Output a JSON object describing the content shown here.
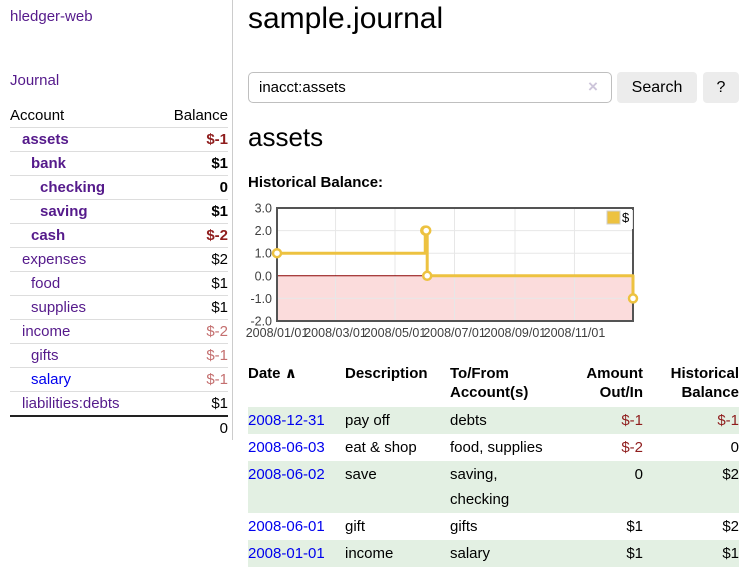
{
  "sidebar": {
    "brand": "hledger-web",
    "nav": {
      "journal": "Journal"
    },
    "table": {
      "account_header": "Account",
      "balance_header": "Balance",
      "accounts": [
        {
          "name": "assets",
          "balance": "$-1",
          "indent": 1,
          "bold": true,
          "balance_tone": "neg"
        },
        {
          "name": "bank",
          "balance": "$1",
          "indent": 2,
          "bold": true,
          "balance_tone": ""
        },
        {
          "name": "checking",
          "balance": "0",
          "indent": 3,
          "bold": true,
          "balance_tone": ""
        },
        {
          "name": "saving",
          "balance": "$1",
          "indent": 3,
          "bold": true,
          "balance_tone": ""
        },
        {
          "name": "cash",
          "balance": "$-2",
          "indent": 2,
          "bold": true,
          "balance_tone": "neg"
        },
        {
          "name": "expenses",
          "balance": "$2",
          "indent": 1,
          "bold": false,
          "balance_tone": ""
        },
        {
          "name": "food",
          "balance": "$1",
          "indent": 2,
          "bold": false,
          "balance_tone": ""
        },
        {
          "name": "supplies",
          "balance": "$1",
          "indent": 2,
          "bold": false,
          "balance_tone": ""
        },
        {
          "name": "income",
          "balance": "$-2",
          "indent": 1,
          "bold": false,
          "balance_tone": "neg-dim"
        },
        {
          "name": "gifts",
          "balance": "$-1",
          "indent": 2,
          "bold": false,
          "balance_tone": "neg-dim"
        },
        {
          "name": "salary",
          "balance": "$-1",
          "indent": 2,
          "bold": false,
          "balance_tone": "neg-dim",
          "link_tone": "blue"
        },
        {
          "name": "liabilities:debts",
          "balance": "$1",
          "indent": 1,
          "bold": false,
          "balance_tone": ""
        }
      ],
      "total": "0"
    }
  },
  "main": {
    "title": "sample.journal",
    "search": {
      "value": "inacct:assets",
      "clear_icon": "×",
      "button": "Search",
      "help_button": "?"
    },
    "heading": "assets",
    "chart_title": "Historical Balance:"
  },
  "chart_data": {
    "type": "line",
    "step": true,
    "title": "Historical Balance:",
    "x_range": [
      "2008-01-01",
      "2008-12-31"
    ],
    "ylim": [
      -2,
      3
    ],
    "yticks": [
      3.0,
      2.0,
      1.0,
      0.0,
      -1.0,
      -2.0
    ],
    "ytick_labels": [
      "3.0",
      "2.0",
      "1.0",
      "0.0",
      "-1.0",
      "-2.0"
    ],
    "xticks": [
      "2008-01-01",
      "2008-03-01",
      "2008-05-01",
      "2008-07-01",
      "2008-09-01",
      "2008-11-01"
    ],
    "xtick_labels": [
      "2008/01/01",
      "2008/03/01",
      "2008/05/01",
      "2008/07/01",
      "2008/09/01",
      "2008/11/01"
    ],
    "series": [
      {
        "name": "$",
        "color": "#EDC240",
        "points": [
          [
            "2008-01-01",
            1
          ],
          [
            "2008-06-01",
            2
          ],
          [
            "2008-06-02",
            2
          ],
          [
            "2008-06-03",
            0
          ],
          [
            "2008-12-31",
            -1
          ]
        ]
      }
    ],
    "legend_position": "top-right",
    "grid": true,
    "grid_color": "#e7e7e7",
    "border_color": "#545454",
    "zero_line_color": "#8b0000",
    "negative_fill": "#fbdcdc"
  },
  "register": {
    "columns": {
      "date": "Date",
      "description": "Description",
      "accounts": "To/From Account(s)",
      "amount": "Amount Out/In",
      "balance": "Historical Balance"
    },
    "sort_icon": "∧",
    "rows": [
      {
        "date": "2008-12-31",
        "description": "pay off",
        "accounts": "debts",
        "amount": "$-1",
        "balance": "$-1",
        "amount_tone": "neg",
        "balance_tone": "neg"
      },
      {
        "date": "2008-06-03",
        "description": "eat & shop",
        "accounts": "food, supplies",
        "amount": "$-2",
        "balance": "0",
        "amount_tone": "neg",
        "balance_tone": ""
      },
      {
        "date": "2008-06-02",
        "description": "save",
        "accounts": "saving, checking",
        "amount": "0",
        "balance": "$2",
        "amount_tone": "",
        "balance_tone": ""
      },
      {
        "date": "2008-06-01",
        "description": "gift",
        "accounts": "gifts",
        "amount": "$1",
        "balance": "$2",
        "amount_tone": "",
        "balance_tone": ""
      },
      {
        "date": "2008-01-01",
        "description": "income",
        "accounts": "salary",
        "amount": "$1",
        "balance": "$1",
        "amount_tone": "",
        "balance_tone": ""
      }
    ]
  },
  "colors": {
    "link_purple": "#551A8B",
    "link_blue": "#0000EE",
    "negative": "#8f1d1d",
    "negative_dim": "#c46f6f",
    "row_green": "#e3f0e3",
    "series_accent": "#EDC240",
    "button_bg": "#ececec"
  }
}
